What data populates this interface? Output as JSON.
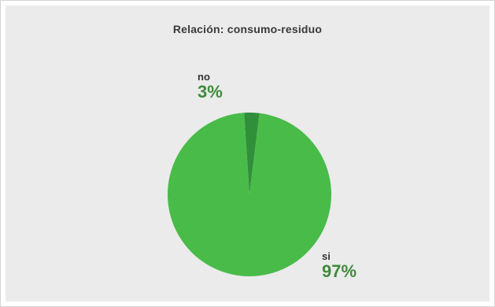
{
  "chart_data": {
    "type": "pie",
    "title": "Relación: consumo-residuo",
    "slices": [
      {
        "label": "no",
        "value": 3,
        "display": "3%",
        "color": "#2f8f3a"
      },
      {
        "label": "si",
        "value": 97,
        "display": "97%",
        "color": "#49bb49"
      }
    ],
    "label_color": "#3f8a3a"
  }
}
